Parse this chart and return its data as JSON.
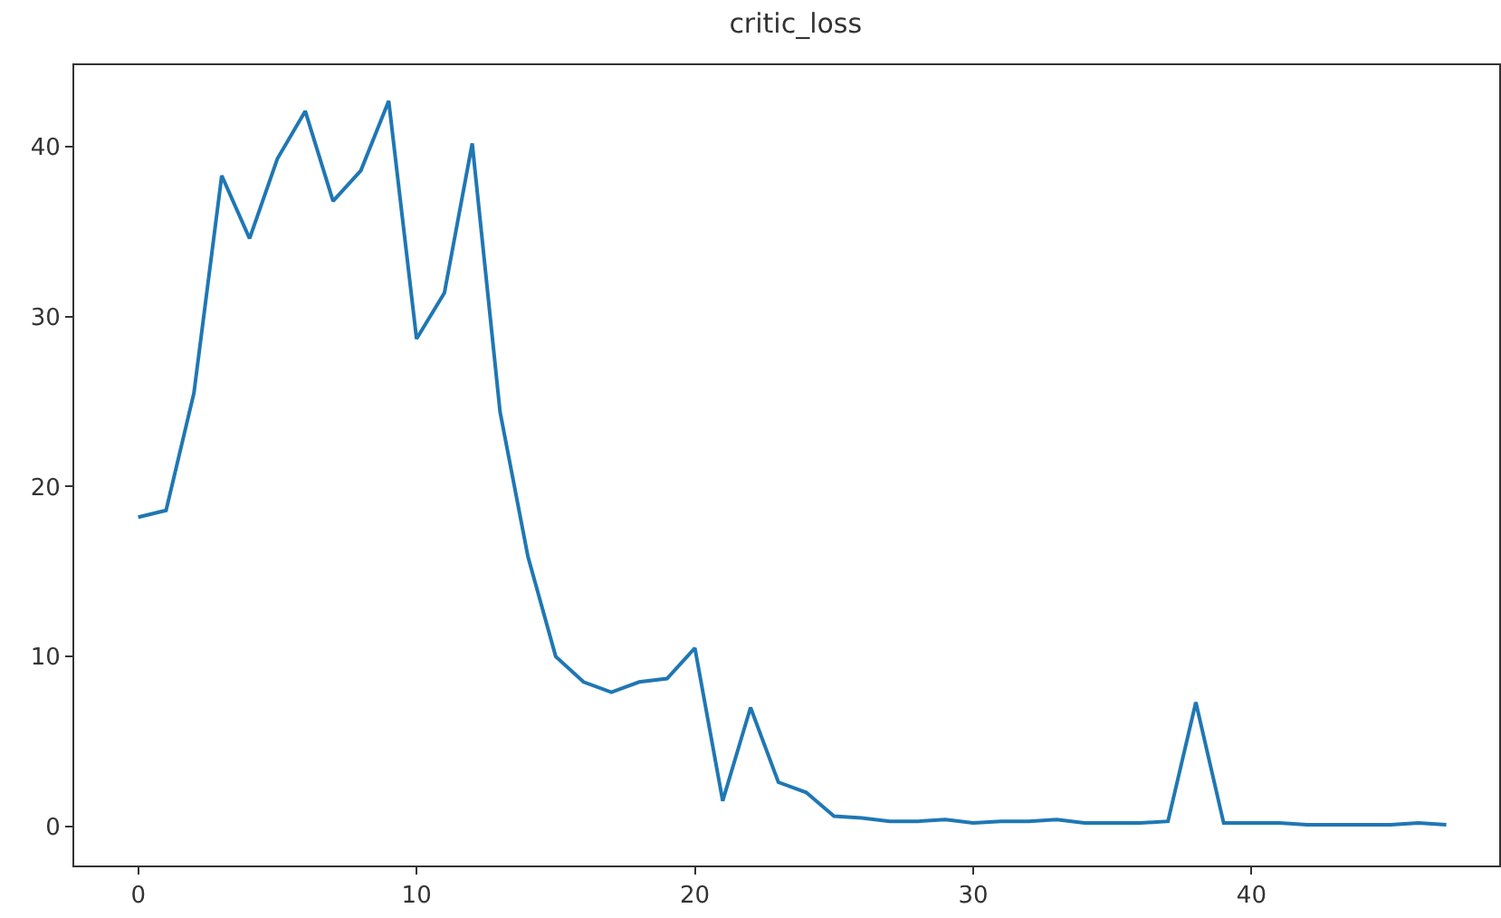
{
  "chart_data": {
    "type": "line",
    "title": "critic_loss",
    "x": [
      0,
      1,
      2,
      3,
      4,
      5,
      6,
      7,
      8,
      9,
      10,
      11,
      12,
      13,
      14,
      15,
      16,
      17,
      18,
      19,
      20,
      21,
      22,
      23,
      24,
      25,
      26,
      27,
      28,
      29,
      30,
      31,
      32,
      33,
      34,
      35,
      36,
      37,
      38,
      39,
      40,
      41,
      42,
      43,
      44,
      45,
      46,
      47
    ],
    "series": [
      {
        "color": "#1f77b4",
        "values": [
          18.2,
          18.6,
          25.5,
          38.3,
          34.6,
          39.3,
          42.1,
          36.8,
          38.6,
          42.7,
          28.7,
          31.4,
          40.2,
          24.4,
          15.9,
          10.0,
          8.5,
          7.9,
          8.5,
          8.7,
          10.5,
          1.5,
          7.0,
          2.6,
          2.0,
          0.6,
          0.5,
          0.3,
          0.3,
          0.4,
          0.2,
          0.3,
          0.3,
          0.4,
          0.2,
          0.2,
          0.2,
          0.3,
          7.3,
          0.2,
          0.2,
          0.2,
          0.1,
          0.1,
          0.1,
          0.1,
          0.2,
          0.1
        ]
      }
    ],
    "xlim": [
      -2.3,
      48.9
    ],
    "ylim": [
      -2.3,
      44.8
    ],
    "xticks": [
      0,
      10,
      20,
      30,
      40
    ],
    "yticks": [
      0,
      10,
      20,
      30,
      40
    ],
    "grid": false,
    "marker": "none",
    "line_style": "solid"
  }
}
